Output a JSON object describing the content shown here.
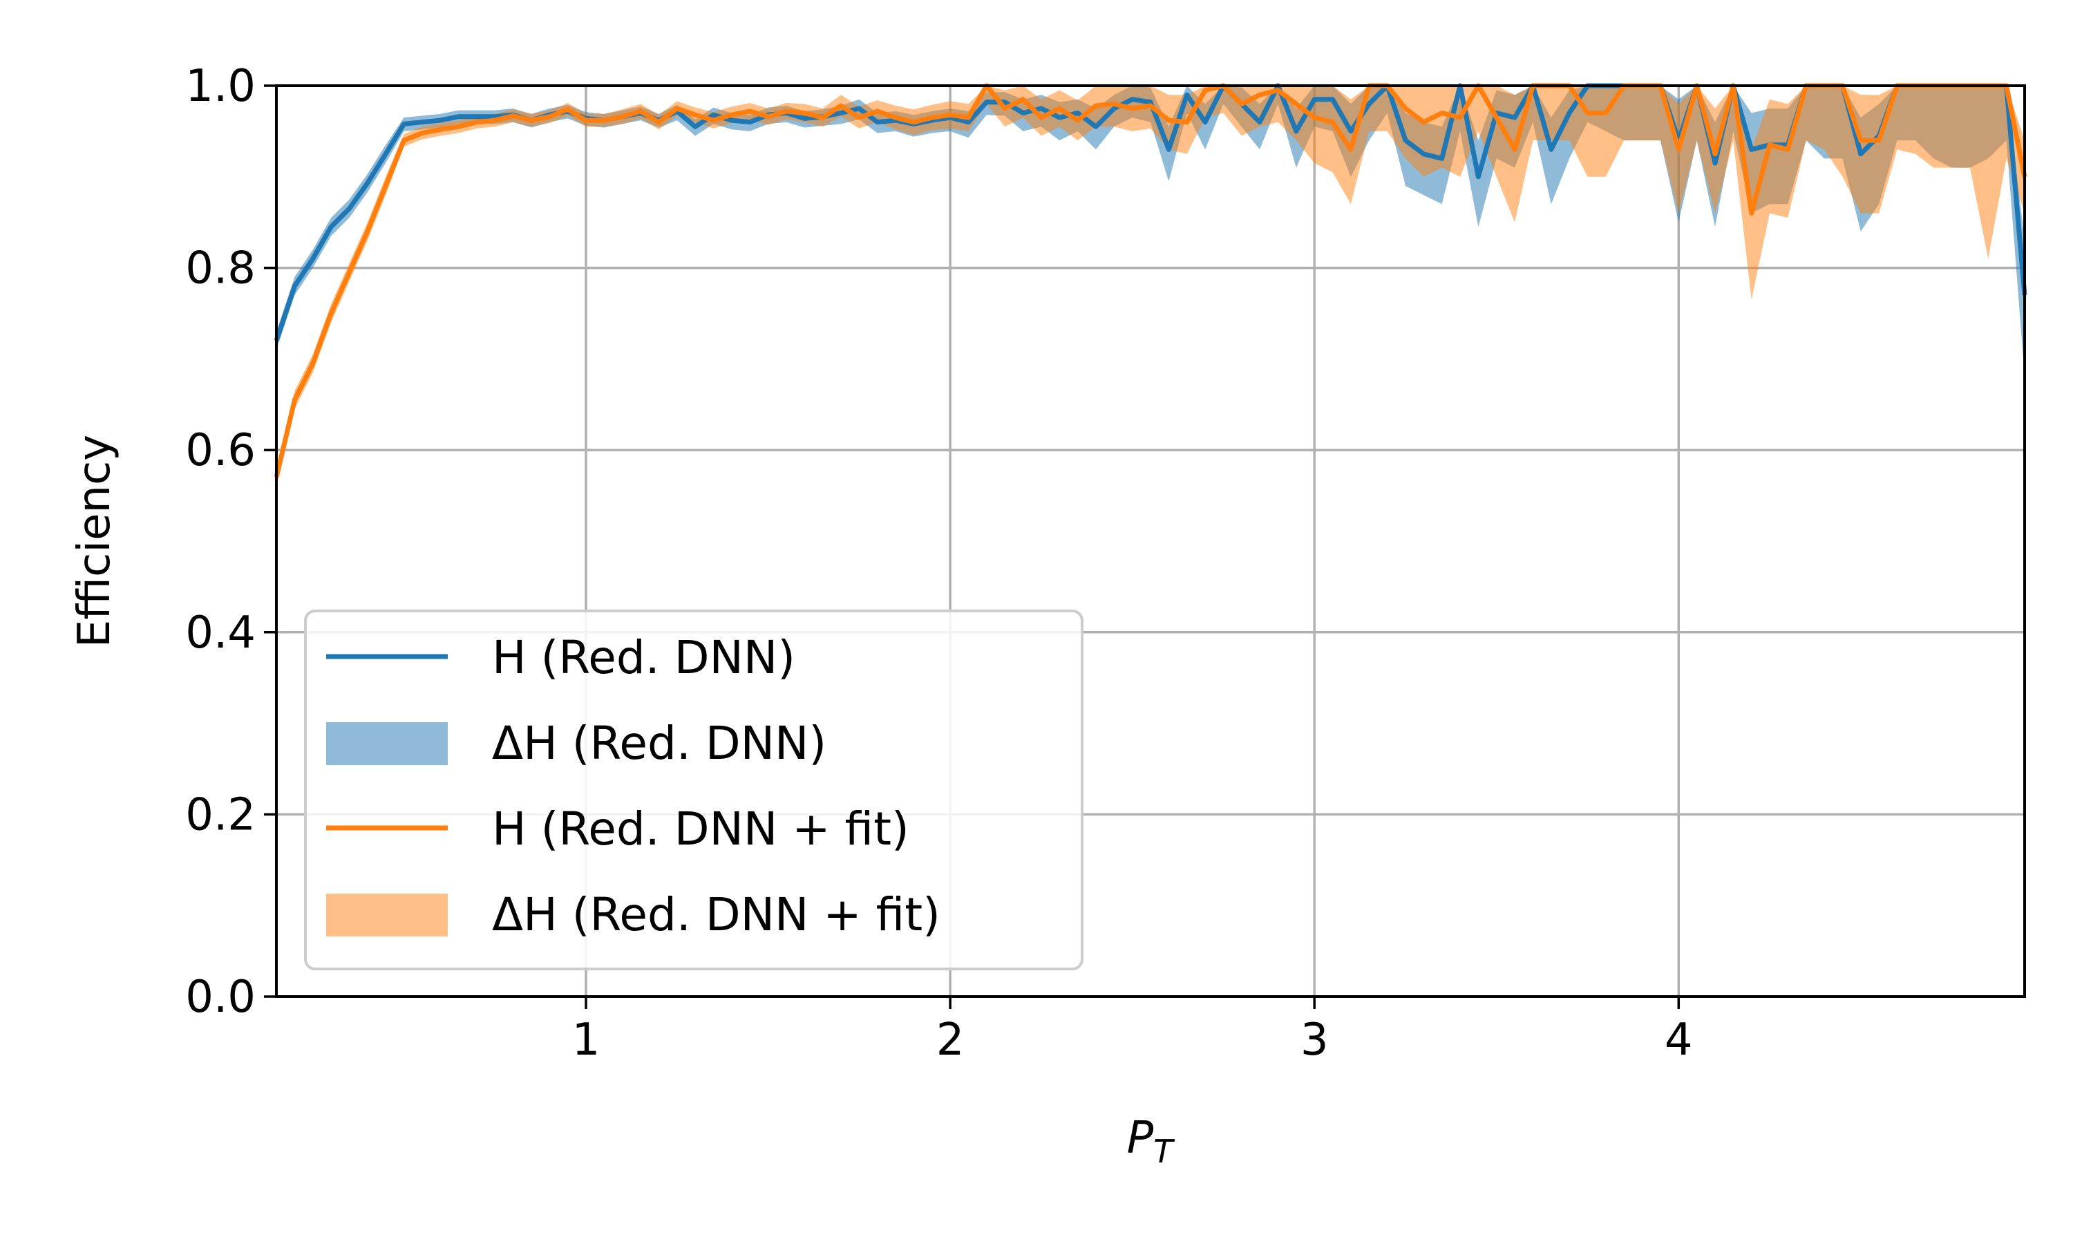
{
  "chart_data": {
    "type": "line",
    "xlabel": "P",
    "xlabel_sub": "T",
    "ylabel": "Efficiency",
    "xlim": [
      0.15,
      4.95
    ],
    "ylim": [
      0.0,
      1.0
    ],
    "xticks": [
      1,
      2,
      3,
      4
    ],
    "xtick_labels": [
      "1",
      "2",
      "3",
      "4"
    ],
    "yticks": [
      0.0,
      0.2,
      0.4,
      0.6,
      0.8,
      1.0
    ],
    "ytick_labels": [
      "0.0",
      "0.2",
      "0.4",
      "0.6",
      "0.8",
      "1.0"
    ],
    "grid": true,
    "legend_position": "lower-left",
    "x": [
      0.15,
      0.2,
      0.25,
      0.3,
      0.35,
      0.4,
      0.45,
      0.5,
      0.55,
      0.6,
      0.65,
      0.7,
      0.75,
      0.8,
      0.85,
      0.9,
      0.95,
      1.0,
      1.05,
      1.1,
      1.15,
      1.2,
      1.25,
      1.3,
      1.35,
      1.4,
      1.45,
      1.5,
      1.55,
      1.6,
      1.65,
      1.7,
      1.75,
      1.8,
      1.85,
      1.9,
      1.95,
      2.0,
      2.05,
      2.1,
      2.15,
      2.2,
      2.25,
      2.3,
      2.35,
      2.4,
      2.45,
      2.5,
      2.55,
      2.6,
      2.65,
      2.7,
      2.75,
      2.8,
      2.85,
      2.9,
      2.95,
      3.0,
      3.05,
      3.1,
      3.15,
      3.2,
      3.25,
      3.3,
      3.35,
      3.4,
      3.45,
      3.5,
      3.55,
      3.6,
      3.65,
      3.7,
      3.75,
      3.8,
      3.85,
      3.9,
      3.95,
      4.0,
      4.05,
      4.1,
      4.15,
      4.2,
      4.25,
      4.3,
      4.35,
      4.4,
      4.45,
      4.5,
      4.55,
      4.6,
      4.65,
      4.7,
      4.75,
      4.8,
      4.85,
      4.9,
      4.95
    ],
    "series": [
      {
        "name": "H (Red. DNN)",
        "band_name": "ΔH (Red. DNN)",
        "color": "#1f77b4",
        "band_color": "#1f77b4",
        "values": [
          0.72,
          0.78,
          0.81,
          0.845,
          0.865,
          0.893,
          0.925,
          0.958,
          0.96,
          0.962,
          0.966,
          0.966,
          0.966,
          0.968,
          0.962,
          0.968,
          0.972,
          0.964,
          0.962,
          0.966,
          0.97,
          0.962,
          0.972,
          0.955,
          0.968,
          0.962,
          0.96,
          0.968,
          0.97,
          0.964,
          0.966,
          0.97,
          0.975,
          0.96,
          0.962,
          0.958,
          0.962,
          0.965,
          0.96,
          0.982,
          0.982,
          0.97,
          0.975,
          0.965,
          0.97,
          0.955,
          0.975,
          0.985,
          0.982,
          0.93,
          0.99,
          0.96,
          1.0,
          0.98,
          0.96,
          1.0,
          0.95,
          0.985,
          0.985,
          0.95,
          0.98,
          1.0,
          0.94,
          0.925,
          0.92,
          1.0,
          0.9,
          0.97,
          0.965,
          1.0,
          0.93,
          0.97,
          1.0,
          1.0,
          1.0,
          1.0,
          1.0,
          0.94,
          1.0,
          0.915,
          1.0,
          0.93,
          0.935,
          0.935,
          1.0,
          1.0,
          1.0,
          0.925,
          0.945,
          1.0,
          1.0,
          1.0,
          1.0,
          1.0,
          1.0,
          1.0,
          0.77
        ],
        "lower": [
          0.71,
          0.77,
          0.8,
          0.835,
          0.855,
          0.883,
          0.915,
          0.95,
          0.952,
          0.954,
          0.958,
          0.958,
          0.958,
          0.96,
          0.954,
          0.96,
          0.964,
          0.956,
          0.954,
          0.958,
          0.962,
          0.954,
          0.962,
          0.945,
          0.958,
          0.952,
          0.95,
          0.958,
          0.96,
          0.954,
          0.956,
          0.958,
          0.963,
          0.948,
          0.95,
          0.944,
          0.948,
          0.95,
          0.943,
          0.968,
          0.967,
          0.95,
          0.955,
          0.94,
          0.95,
          0.93,
          0.955,
          0.965,
          0.96,
          0.895,
          0.97,
          0.93,
          0.98,
          0.955,
          0.93,
          0.98,
          0.91,
          0.955,
          0.95,
          0.9,
          0.94,
          0.97,
          0.89,
          0.88,
          0.87,
          0.95,
          0.845,
          0.92,
          0.91,
          0.96,
          0.87,
          0.92,
          0.96,
          0.95,
          0.94,
          0.94,
          0.94,
          0.85,
          0.94,
          0.845,
          0.95,
          0.86,
          0.87,
          0.87,
          0.94,
          0.92,
          0.92,
          0.84,
          0.87,
          0.94,
          0.94,
          0.92,
          0.91,
          0.91,
          0.92,
          0.94,
          0.68
        ],
        "upper": [
          0.73,
          0.79,
          0.82,
          0.855,
          0.875,
          0.903,
          0.935,
          0.965,
          0.967,
          0.969,
          0.973,
          0.973,
          0.973,
          0.975,
          0.969,
          0.975,
          0.979,
          0.971,
          0.969,
          0.973,
          0.977,
          0.969,
          0.979,
          0.963,
          0.976,
          0.97,
          0.968,
          0.976,
          0.978,
          0.972,
          0.974,
          0.978,
          0.985,
          0.97,
          0.972,
          0.968,
          0.972,
          0.975,
          0.972,
          0.993,
          0.993,
          0.985,
          0.99,
          0.982,
          0.985,
          0.975,
          0.99,
          1.0,
          0.998,
          0.955,
          1.0,
          0.98,
          1.0,
          0.998,
          0.98,
          1.0,
          0.975,
          1.0,
          1.0,
          0.98,
          1.0,
          1.0,
          0.97,
          0.96,
          0.955,
          1.0,
          0.94,
          0.995,
          0.99,
          1.0,
          0.965,
          0.995,
          1.0,
          1.0,
          1.0,
          1.0,
          1.0,
          0.985,
          1.0,
          0.96,
          1.0,
          0.97,
          0.975,
          0.975,
          1.0,
          1.0,
          1.0,
          0.965,
          0.98,
          1.0,
          1.0,
          1.0,
          1.0,
          1.0,
          1.0,
          1.0,
          0.83
        ]
      },
      {
        "name": "H (Red. DNN + fit)",
        "band_name": "ΔH (Red. DNN + fit)",
        "color": "#ff7f0e",
        "band_color": "#ff7f0e",
        "values": [
          0.57,
          0.655,
          0.695,
          0.75,
          0.795,
          0.84,
          0.89,
          0.94,
          0.948,
          0.952,
          0.955,
          0.96,
          0.962,
          0.967,
          0.962,
          0.966,
          0.974,
          0.962,
          0.962,
          0.966,
          0.972,
          0.96,
          0.975,
          0.968,
          0.962,
          0.968,
          0.972,
          0.966,
          0.972,
          0.97,
          0.965,
          0.978,
          0.965,
          0.972,
          0.965,
          0.96,
          0.965,
          0.968,
          0.965,
          1.0,
          0.975,
          0.985,
          0.965,
          0.975,
          0.962,
          0.978,
          0.98,
          0.975,
          0.978,
          0.962,
          0.96,
          0.995,
          1.0,
          0.98,
          0.99,
          0.995,
          0.98,
          0.965,
          0.96,
          0.93,
          1.0,
          1.0,
          0.975,
          0.96,
          0.97,
          0.965,
          1.0,
          0.965,
          0.93,
          1.0,
          1.0,
          1.0,
          0.97,
          0.97,
          1.0,
          1.0,
          1.0,
          0.93,
          1.0,
          0.925,
          1.0,
          0.86,
          0.935,
          0.93,
          1.0,
          1.0,
          1.0,
          0.94,
          0.94,
          1.0,
          1.0,
          1.0,
          1.0,
          1.0,
          1.0,
          1.0,
          0.9
        ],
        "lower": [
          0.56,
          0.645,
          0.685,
          0.74,
          0.785,
          0.83,
          0.88,
          0.933,
          0.941,
          0.945,
          0.948,
          0.953,
          0.955,
          0.96,
          0.955,
          0.959,
          0.967,
          0.955,
          0.955,
          0.958,
          0.964,
          0.952,
          0.967,
          0.96,
          0.953,
          0.959,
          0.963,
          0.957,
          0.963,
          0.96,
          0.955,
          0.966,
          0.953,
          0.96,
          0.952,
          0.946,
          0.951,
          0.953,
          0.95,
          0.98,
          0.955,
          0.965,
          0.945,
          0.955,
          0.94,
          0.955,
          0.955,
          0.95,
          0.953,
          0.93,
          0.925,
          0.965,
          0.97,
          0.945,
          0.955,
          0.96,
          0.94,
          0.915,
          0.905,
          0.87,
          0.95,
          0.95,
          0.92,
          0.9,
          0.91,
          0.9,
          0.95,
          0.9,
          0.85,
          0.94,
          0.94,
          0.94,
          0.9,
          0.9,
          0.94,
          0.94,
          0.94,
          0.86,
          0.94,
          0.86,
          0.94,
          0.765,
          0.86,
          0.855,
          0.94,
          0.93,
          0.9,
          0.86,
          0.86,
          0.93,
          0.925,
          0.91,
          0.91,
          0.91,
          0.81,
          0.92,
          0.86
        ],
        "upper": [
          0.58,
          0.665,
          0.705,
          0.76,
          0.805,
          0.85,
          0.9,
          0.947,
          0.955,
          0.959,
          0.962,
          0.967,
          0.969,
          0.974,
          0.969,
          0.973,
          0.981,
          0.969,
          0.969,
          0.974,
          0.98,
          0.968,
          0.983,
          0.976,
          0.971,
          0.977,
          0.981,
          0.975,
          0.981,
          0.98,
          0.975,
          0.99,
          0.977,
          0.984,
          0.978,
          0.974,
          0.979,
          0.983,
          0.98,
          1.0,
          0.995,
          1.0,
          0.985,
          0.995,
          0.984,
          1.0,
          1.0,
          1.0,
          1.0,
          0.99,
          0.99,
          1.0,
          1.0,
          1.0,
          1.0,
          1.0,
          1.0,
          1.0,
          1.0,
          0.985,
          1.0,
          1.0,
          1.0,
          1.0,
          1.0,
          1.0,
          1.0,
          1.0,
          0.99,
          1.0,
          1.0,
          1.0,
          1.0,
          1.0,
          1.0,
          1.0,
          1.0,
          0.98,
          1.0,
          0.975,
          1.0,
          0.93,
          0.985,
          0.98,
          1.0,
          1.0,
          1.0,
          0.99,
          0.99,
          1.0,
          1.0,
          1.0,
          1.0,
          1.0,
          1.0,
          1.0,
          0.94
        ]
      }
    ]
  },
  "legend": {
    "items": [
      {
        "label": "H (Red. DNN)",
        "kind": "line",
        "color": "#1f77b4"
      },
      {
        "label": "ΔH (Red. DNN)",
        "kind": "band",
        "color": "#1f77b4"
      },
      {
        "label": "H (Red. DNN + fit)",
        "kind": "line",
        "color": "#ff7f0e"
      },
      {
        "label": "ΔH (Red. DNN + fit)",
        "kind": "band",
        "color": "#ff7f0e"
      }
    ]
  }
}
